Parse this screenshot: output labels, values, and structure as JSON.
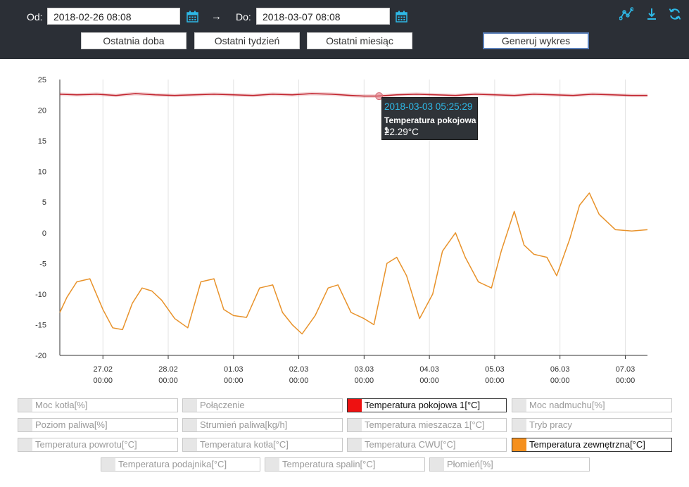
{
  "toolbar": {
    "from_label": "Od:",
    "from_value": "2018-02-26 08:08",
    "arrow": "→",
    "to_label": "Do:",
    "to_value": "2018-03-07 08:08",
    "quick_ranges": [
      "Ostatnia doba",
      "Ostatni tydzień",
      "Ostatni miesiąc"
    ],
    "generate_label": "Generuj wykres",
    "icons": [
      "chart-line-icon",
      "download-icon",
      "refresh-icon"
    ],
    "icon_color": "#2eb8e6"
  },
  "tooltip": {
    "time": "2018-03-03 05:25:29",
    "series": "Temperatura pokojowa 1",
    "value": "22.29°C"
  },
  "chart_data": {
    "type": "line",
    "ylim": [
      -20,
      25
    ],
    "y_ticks": [
      25,
      20,
      15,
      10,
      5,
      0,
      -5,
      -10,
      -15,
      -20
    ],
    "x_ticks": [
      {
        "date": "27.02",
        "time": "00:00",
        "day": 1
      },
      {
        "date": "28.02",
        "time": "00:00",
        "day": 2
      },
      {
        "date": "01.03",
        "time": "00:00",
        "day": 3
      },
      {
        "date": "02.03",
        "time": "00:00",
        "day": 4
      },
      {
        "date": "03.03",
        "time": "00:00",
        "day": 5
      },
      {
        "date": "04.03",
        "time": "00:00",
        "day": 6
      },
      {
        "date": "05.03",
        "time": "00:00",
        "day": 7
      },
      {
        "date": "06.03",
        "time": "00:00",
        "day": 8
      },
      {
        "date": "07.03",
        "time": "00:00",
        "day": 9
      }
    ],
    "xlim": [
      0.34,
      9.34
    ],
    "grid_vertical": true,
    "series": [
      {
        "name": "Temperatura pokojowa 1[°C]",
        "color": "#c0202a",
        "x": [
          0.34,
          0.6,
          0.9,
          1.2,
          1.5,
          1.8,
          2.1,
          2.4,
          2.7,
          3.0,
          3.3,
          3.6,
          3.9,
          4.2,
          4.5,
          4.8,
          5.0,
          5.2,
          5.5,
          5.8,
          6.1,
          6.4,
          6.7,
          7.0,
          7.3,
          7.6,
          7.9,
          8.2,
          8.5,
          8.8,
          9.1,
          9.34
        ],
        "values": [
          22.6,
          22.5,
          22.6,
          22.4,
          22.7,
          22.5,
          22.4,
          22.5,
          22.6,
          22.5,
          22.4,
          22.6,
          22.5,
          22.7,
          22.6,
          22.4,
          22.3,
          22.3,
          22.5,
          22.6,
          22.5,
          22.4,
          22.6,
          22.5,
          22.4,
          22.6,
          22.5,
          22.4,
          22.6,
          22.5,
          22.4,
          22.4
        ]
      },
      {
        "name": "Temperatura zewnętrzna[°C]",
        "color": "#e8922a",
        "x": [
          0.34,
          0.45,
          0.6,
          0.8,
          1.0,
          1.15,
          1.3,
          1.45,
          1.6,
          1.75,
          1.9,
          2.1,
          2.3,
          2.5,
          2.7,
          2.85,
          3.0,
          3.2,
          3.4,
          3.6,
          3.75,
          3.9,
          4.05,
          4.25,
          4.45,
          4.6,
          4.8,
          5.0,
          5.15,
          5.35,
          5.5,
          5.65,
          5.85,
          6.05,
          6.2,
          6.4,
          6.55,
          6.75,
          6.95,
          7.1,
          7.3,
          7.45,
          7.6,
          7.8,
          7.95,
          8.15,
          8.3,
          8.45,
          8.6,
          8.85,
          9.1,
          9.34
        ],
        "values": [
          -13,
          -10.5,
          -8,
          -7.5,
          -12.5,
          -15.5,
          -15.8,
          -11.5,
          -9,
          -9.5,
          -11,
          -14,
          -15.5,
          -8,
          -7.5,
          -12.5,
          -13.5,
          -13.8,
          -9,
          -8.5,
          -13,
          -15,
          -16.5,
          -13.5,
          -9,
          -8.5,
          -13,
          -14,
          -15,
          -5,
          -4,
          -7,
          -14,
          -10,
          -3,
          0,
          -4,
          -8,
          -9,
          -3,
          3.5,
          -2,
          -3.5,
          -4,
          -7,
          -1,
          4.5,
          6.5,
          3,
          0.5,
          0.3,
          0.5
        ]
      }
    ]
  },
  "legend": [
    {
      "label": "Moc kotła[%]",
      "active": false,
      "color": ""
    },
    {
      "label": "Połączenie",
      "active": false,
      "color": ""
    },
    {
      "label": "Temperatura pokojowa 1[°C]",
      "active": true,
      "color": "#ee1111"
    },
    {
      "label": "Moc nadmuchu[%]",
      "active": false,
      "color": ""
    },
    {
      "label": "Poziom paliwa[%]",
      "active": false,
      "color": ""
    },
    {
      "label": "Strumień paliwa[kg/h]",
      "active": false,
      "color": ""
    },
    {
      "label": "Temperatura mieszacza 1[°C]",
      "active": false,
      "color": ""
    },
    {
      "label": "Tryb pracy",
      "active": false,
      "color": ""
    },
    {
      "label": "Temperatura powrotu[°C]",
      "active": false,
      "color": ""
    },
    {
      "label": "Temperatura kotła[°C]",
      "active": false,
      "color": ""
    },
    {
      "label": "Temperatura CWU[°C]",
      "active": false,
      "color": ""
    },
    {
      "label": "Temperatura zewnętrzna[°C]",
      "active": true,
      "color": "#f5901e"
    },
    {
      "label": "Temperatura podajnika[°C]",
      "active": false,
      "color": ""
    },
    {
      "label": "Temperatura spalin[°C]",
      "active": false,
      "color": ""
    },
    {
      "label": "Płomień[%]",
      "active": false,
      "color": ""
    }
  ]
}
